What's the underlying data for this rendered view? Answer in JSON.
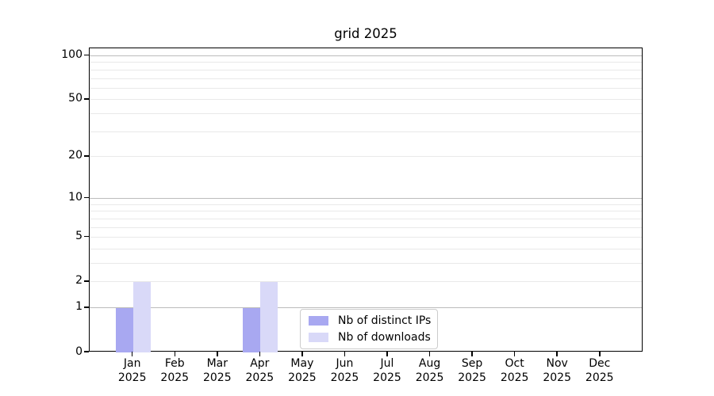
{
  "chart_data": {
    "type": "bar",
    "title": "grid 2025",
    "x": {
      "months": [
        "Jan",
        "Feb",
        "Mar",
        "Apr",
        "May",
        "Jun",
        "Jul",
        "Aug",
        "Sep",
        "Oct",
        "Nov",
        "Dec"
      ],
      "year": "2025"
    },
    "series": [
      {
        "name": "Nb of distinct IPs",
        "color": "#a8a8f1",
        "values": [
          1,
          0,
          0,
          1,
          0,
          0,
          0,
          0,
          0,
          0,
          0,
          0
        ]
      },
      {
        "name": "Nb of downloads",
        "color": "#d9d9f8",
        "values": [
          2,
          0,
          0,
          2,
          0,
          0,
          0,
          0,
          0,
          0,
          0,
          0
        ]
      }
    ],
    "y_axis": {
      "scale": "log1p",
      "tick_values": [
        0,
        1,
        2,
        5,
        10,
        20,
        50,
        100
      ],
      "major_grid_values": [
        1,
        10,
        100
      ],
      "minor_grid_values": [
        2,
        3,
        4,
        5,
        6,
        7,
        8,
        9,
        20,
        30,
        40,
        50,
        60,
        70,
        80,
        90
      ],
      "range": [
        0,
        113
      ]
    },
    "legend": {
      "position": "lower center"
    },
    "grid": true,
    "colors": {
      "grid_major": "#bcbcbc",
      "grid_minor": "#e9e9e9",
      "axis": "#000000",
      "legend_border": "#cccccc",
      "background": "#ffffff"
    }
  }
}
